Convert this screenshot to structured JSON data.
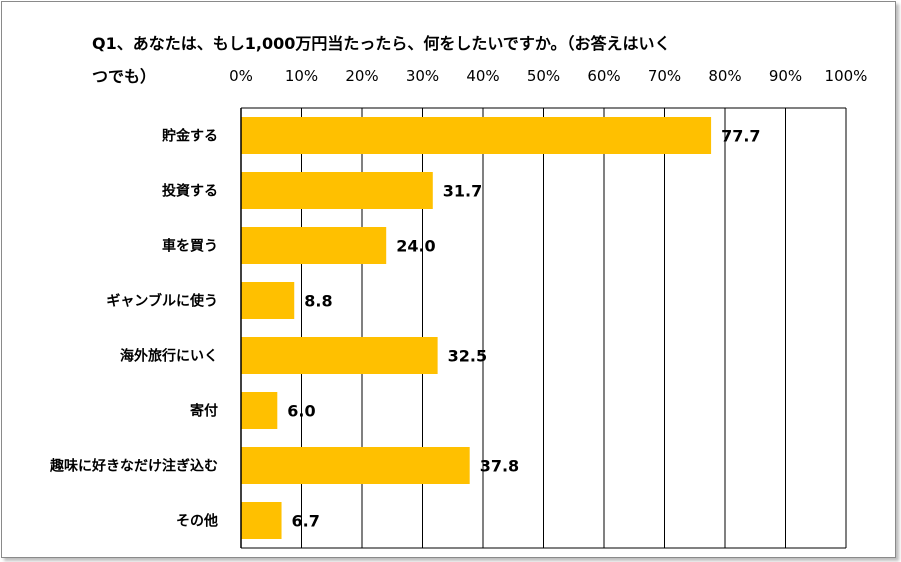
{
  "chart_data": {
    "type": "bar",
    "orientation": "horizontal",
    "title_lines": [
      "Q1、あなたは、もし1,000万円当たったら、何をしたいですか。（お答えはいく",
      "つでも）"
    ],
    "categories": [
      "貯金する",
      "投資する",
      "車を買う",
      "ギャンブルに使う",
      "海外旅行にいく",
      "寄付",
      "趣味に好きなだけ注ぎ込む",
      "その他"
    ],
    "values": [
      77.7,
      31.7,
      24.0,
      8.8,
      32.5,
      6.0,
      37.8,
      6.7
    ],
    "value_labels": [
      "77.7",
      "31.7",
      "24.0",
      "8.8",
      "32.5",
      "6.0",
      "37.8",
      "6.7"
    ],
    "xlim": [
      0,
      100
    ],
    "x_ticks": [
      "0%",
      "10%",
      "20%",
      "30%",
      "40%",
      "50%",
      "60%",
      "70%",
      "80%",
      "90%",
      "100%"
    ],
    "grid": true,
    "bar_color": "#ffc000",
    "grid_color": "#000000"
  }
}
